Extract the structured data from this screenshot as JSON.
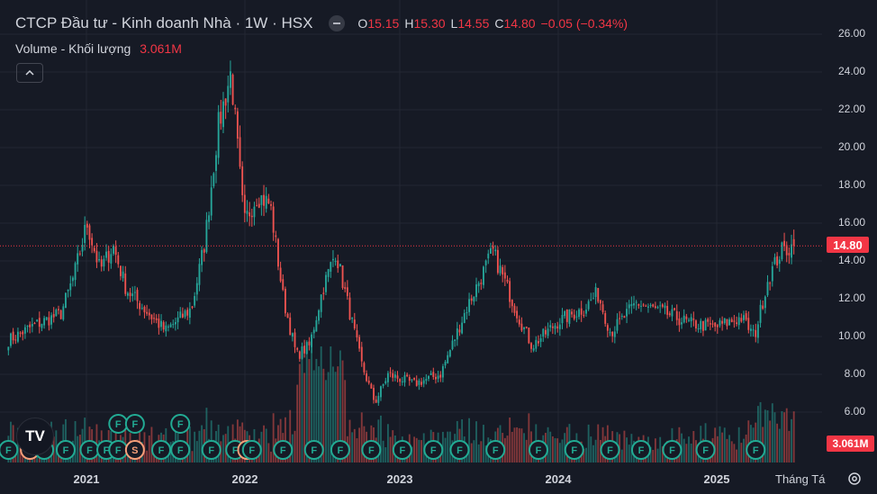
{
  "header": {
    "title": "CTCP Đầu tư - Kinh doanh Nhà · 1W · HSX",
    "ohlc": [
      {
        "key": "O",
        "value": "15.15"
      },
      {
        "key": "H",
        "value": "15.30"
      },
      {
        "key": "L",
        "value": "14.55"
      },
      {
        "key": "C",
        "value": "14.80"
      }
    ],
    "change": "−0.05 (−0.34%)"
  },
  "volume": {
    "label": "Volume - Khối lượng",
    "value": "3.061M"
  },
  "price_axis": {
    "labels": [
      "26.00",
      "24.00",
      "22.00",
      "20.00",
      "18.00",
      "16.00",
      "14.00",
      "12.00",
      "10.00",
      "8.00",
      "6.00"
    ],
    "last_price_tag": "14.80",
    "last_volume_tag": "3.061M"
  },
  "time_axis": {
    "labels": [
      "2021",
      "2022",
      "2023",
      "2024",
      "2025"
    ],
    "period_button": "Tháng Tá"
  },
  "logo_text": "TV",
  "colors": {
    "up": "#26a69a",
    "down": "#ef5350",
    "background": "#161a25",
    "event_F": "#22ab94",
    "event_S": "#f7a07a"
  },
  "chart_data": {
    "type": "candlestick",
    "interval": "1W",
    "ylim": [
      4.0,
      27.0
    ],
    "x_labels": [
      "2021",
      "2022",
      "2023",
      "2024",
      "2025"
    ],
    "grid": true,
    "last_close": 14.8,
    "close_anchors": [
      {
        "t": "2020-07",
        "close": 9.8
      },
      {
        "t": "2020-09",
        "close": 10.6
      },
      {
        "t": "2020-11",
        "close": 11.2
      },
      {
        "t": "2020-12",
        "close": 13.2
      },
      {
        "t": "2021-01",
        "close": 16.0
      },
      {
        "t": "2021-02",
        "close": 13.5
      },
      {
        "t": "2021-03",
        "close": 14.8
      },
      {
        "t": "2021-04",
        "close": 12.5
      },
      {
        "t": "2021-06",
        "close": 11.0
      },
      {
        "t": "2021-07",
        "close": 10.3
      },
      {
        "t": "2021-09",
        "close": 11.5
      },
      {
        "t": "2021-10",
        "close": 15.0
      },
      {
        "t": "2021-11",
        "close": 21.0
      },
      {
        "t": "2021-12",
        "close": 24.0
      },
      {
        "t": "2022-01",
        "close": 16.0
      },
      {
        "t": "2022-02",
        "close": 17.5
      },
      {
        "t": "2022-03",
        "close": 17.0
      },
      {
        "t": "2022-04",
        "close": 12.0
      },
      {
        "t": "2022-05",
        "close": 9.0
      },
      {
        "t": "2022-06",
        "close": 9.5
      },
      {
        "t": "2022-07",
        "close": 12.5
      },
      {
        "t": "2022-08",
        "close": 14.5
      },
      {
        "t": "2022-09",
        "close": 11.5
      },
      {
        "t": "2022-10",
        "close": 8.5
      },
      {
        "t": "2022-11",
        "close": 6.5
      },
      {
        "t": "2022-12",
        "close": 8.0
      },
      {
        "t": "2023-02",
        "close": 7.5
      },
      {
        "t": "2023-04",
        "close": 8.0
      },
      {
        "t": "2023-06",
        "close": 11.5
      },
      {
        "t": "2023-08",
        "close": 14.5
      },
      {
        "t": "2023-10",
        "close": 11.0
      },
      {
        "t": "2023-11",
        "close": 9.5
      },
      {
        "t": "2024-01",
        "close": 10.8
      },
      {
        "t": "2024-03",
        "close": 11.5
      },
      {
        "t": "2024-04",
        "close": 12.3
      },
      {
        "t": "2024-05",
        "close": 10.2
      },
      {
        "t": "2024-07",
        "close": 11.8
      },
      {
        "t": "2024-08",
        "close": 11.5
      },
      {
        "t": "2024-09",
        "close": 11.3
      },
      {
        "t": "2024-11",
        "close": 10.7
      },
      {
        "t": "2025-01",
        "close": 10.5
      },
      {
        "t": "2025-03",
        "close": 11.0
      },
      {
        "t": "2025-04",
        "close": 10.0
      },
      {
        "t": "2025-05",
        "close": 13.0
      },
      {
        "t": "2025-06",
        "close": 14.5
      },
      {
        "t": "2025-07",
        "close": 14.8
      }
    ],
    "event_markers": [
      "F",
      "S",
      "F",
      "F",
      "F",
      "F",
      "F",
      "S",
      "F",
      "F",
      "F",
      "F",
      "S",
      "F",
      "F",
      "F",
      "F",
      "F",
      "F",
      "F",
      "F",
      "F",
      "F",
      "F",
      "F",
      "F",
      "F",
      "F",
      "F"
    ],
    "event_marker_cols": [
      0,
      9,
      15,
      24,
      34,
      41,
      46,
      53,
      64,
      72,
      85,
      95,
      100,
      102,
      115,
      128,
      139,
      152,
      165,
      178,
      189,
      204,
      222,
      237,
      252,
      265,
      278,
      292,
      313
    ],
    "event_markers_upper": [
      "F",
      "F",
      "F"
    ],
    "event_marker_upper_cols": [
      46,
      53,
      72
    ]
  }
}
